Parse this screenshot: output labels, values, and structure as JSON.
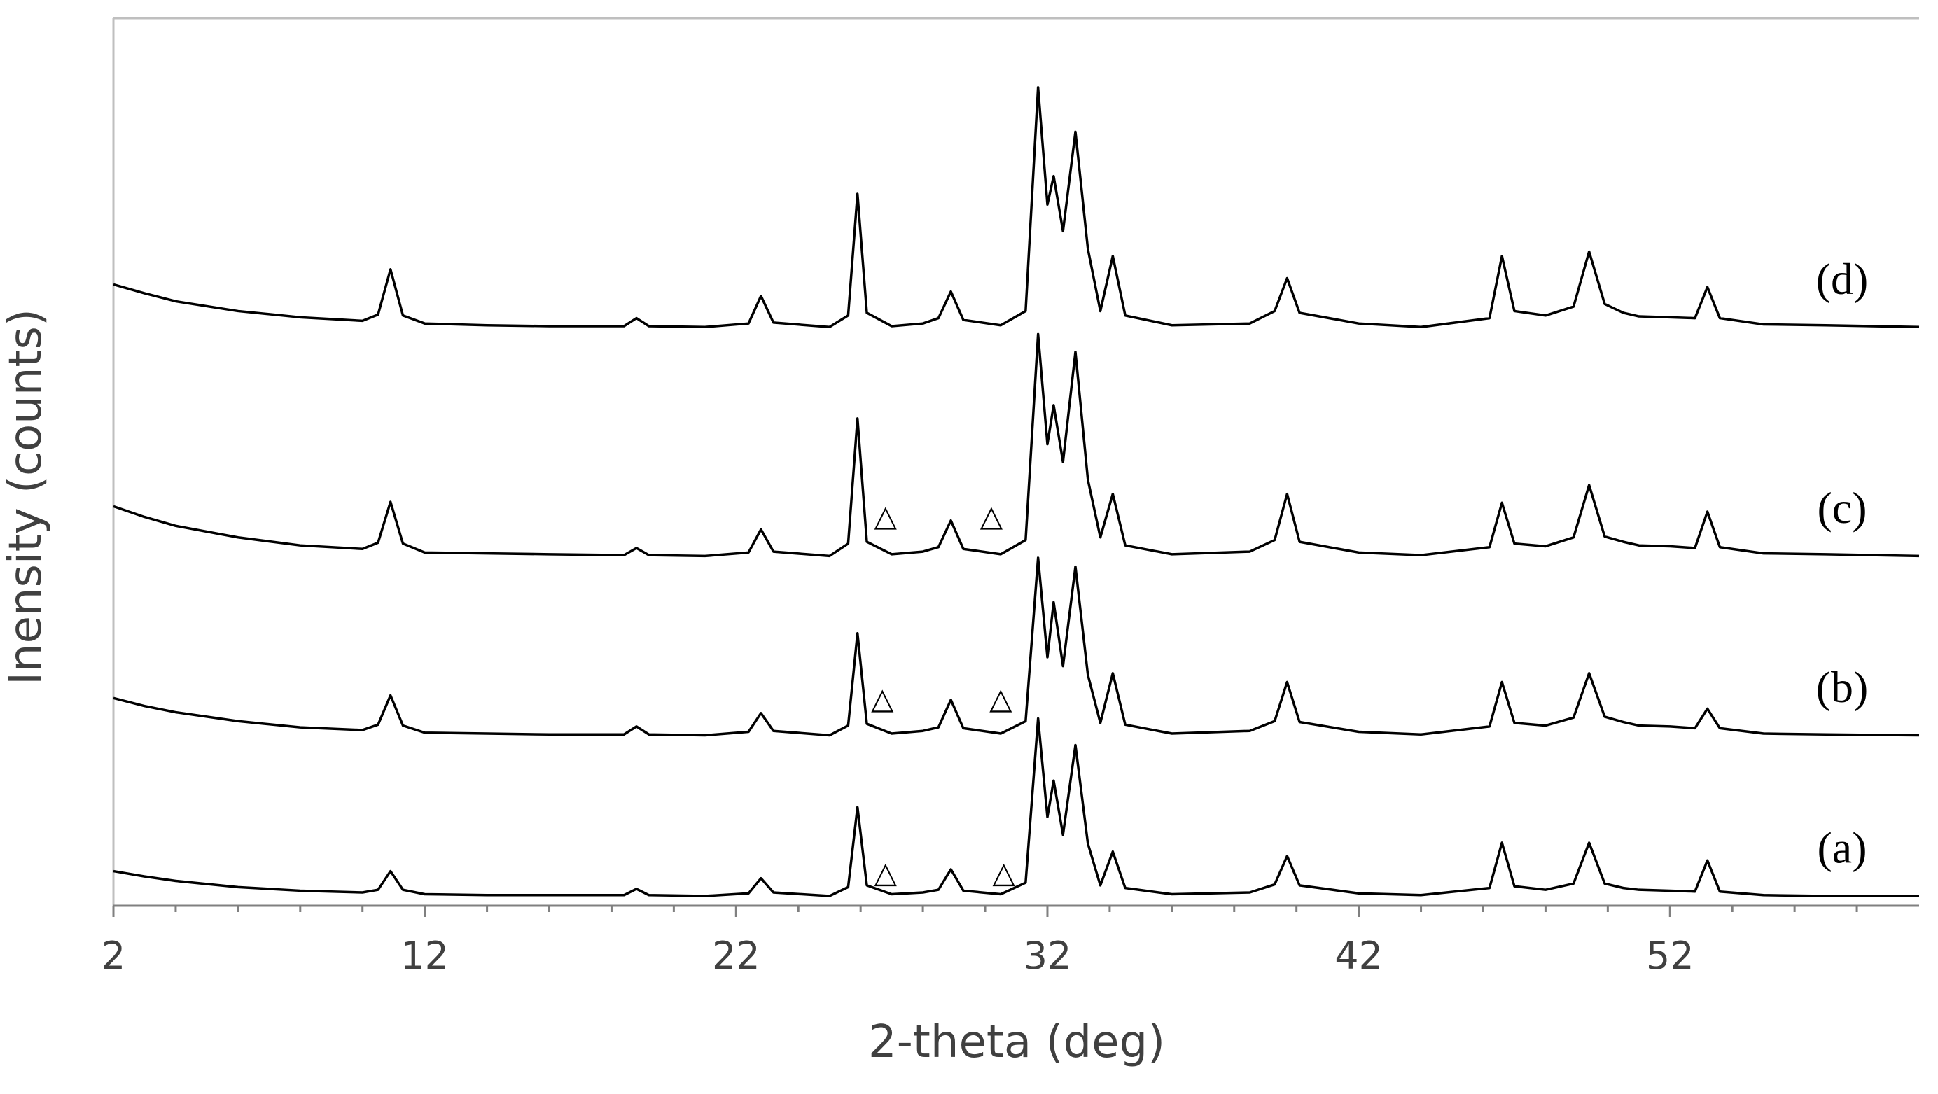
{
  "chart_data": {
    "type": "line",
    "xlabel": "2-theta (deg)",
    "ylabel": "Inensity (counts)",
    "x": [
      2,
      3,
      4,
      6,
      8,
      10,
      10.5,
      10.9,
      11.3,
      12,
      14,
      16,
      18.4,
      18.8,
      19.2,
      21,
      22.4,
      22.8,
      23.2,
      25,
      25.6,
      25.9,
      26.2,
      27,
      28,
      28.5,
      28.9,
      29.3,
      30.5,
      31.3,
      31.7,
      32.0,
      32.2,
      32.5,
      32.9,
      33.3,
      33.7,
      34.1,
      34.5,
      36,
      38.5,
      39.3,
      39.7,
      40.1,
      42,
      44,
      46.2,
      46.6,
      47,
      48,
      48.9,
      49.4,
      49.9,
      50.5,
      51,
      52,
      52.8,
      53.2,
      53.6,
      55,
      57,
      60
    ],
    "series": [
      {
        "name": "(a)",
        "color": "#000000",
        "values": [
          3.9,
          3.3,
          2.8,
          2.1,
          1.7,
          1.5,
          1.8,
          3.9,
          1.8,
          1.3,
          1.2,
          1.2,
          1.2,
          1.9,
          1.2,
          1.1,
          1.4,
          3.1,
          1.5,
          1.1,
          2.1,
          11.1,
          2.3,
          1.3,
          1.5,
          1.8,
          4.1,
          1.7,
          1.3,
          2.6,
          21.1,
          10,
          14.1,
          8,
          18.1,
          7,
          2.3,
          6.1,
          2,
          1.3,
          1.5,
          2.4,
          5.6,
          2.3,
          1.4,
          1.2,
          2,
          7.1,
          2.2,
          1.8,
          2.5,
          7.1,
          2.5,
          2,
          1.8,
          1.7,
          1.6,
          5.1,
          1.6,
          1.2,
          1.1,
          1.1
        ]
      },
      {
        "name": "(b)",
        "color": "#000000",
        "values": [
          23.4,
          22.5,
          21.8,
          20.8,
          20.1,
          19.8,
          20.4,
          23.7,
          20.3,
          19.5,
          19.4,
          19.3,
          19.3,
          20.2,
          19.3,
          19.2,
          19.6,
          21.7,
          19.7,
          19.2,
          20.3,
          30.7,
          20.5,
          19.4,
          19.7,
          20.1,
          23.2,
          20,
          19.4,
          20.8,
          39.2,
          28,
          34.2,
          27,
          38.2,
          26,
          20.6,
          26.2,
          20.4,
          19.4,
          19.7,
          20.8,
          25.2,
          20.7,
          19.6,
          19.3,
          20.2,
          25.2,
          20.6,
          20.3,
          21.2,
          26.2,
          21.3,
          20.7,
          20.3,
          20.2,
          20,
          22.2,
          20,
          19.4,
          19.3,
          19.2
        ]
      },
      {
        "name": "(c)",
        "color": "#000000",
        "values": [
          45,
          43.8,
          42.8,
          41.5,
          40.6,
          40.2,
          40.9,
          45.5,
          40.8,
          39.8,
          39.7,
          39.6,
          39.5,
          40.3,
          39.5,
          39.4,
          39.8,
          42.4,
          39.9,
          39.4,
          40.8,
          54.9,
          41,
          39.6,
          39.9,
          40.4,
          43.4,
          40.2,
          39.6,
          41.2,
          64.4,
          52,
          56.4,
          50,
          62.4,
          48,
          41.5,
          46.4,
          40.6,
          39.6,
          39.9,
          41.2,
          46.4,
          41,
          39.8,
          39.5,
          40.4,
          45.4,
          40.8,
          40.5,
          41.5,
          47.4,
          41.6,
          41,
          40.6,
          40.5,
          40.3,
          44.4,
          40.4,
          39.7,
          39.6,
          39.4
        ]
      },
      {
        "name": "(d)",
        "color": "#000000",
        "values": [
          70,
          69,
          68.1,
          67,
          66.3,
          65.9,
          66.6,
          71.7,
          66.5,
          65.6,
          65.4,
          65.3,
          65.3,
          66.2,
          65.3,
          65.2,
          65.6,
          68.7,
          65.7,
          65.2,
          66.5,
          80.2,
          66.8,
          65.3,
          65.6,
          66.2,
          69.2,
          66,
          65.4,
          67,
          92.2,
          79,
          82.2,
          76,
          87.2,
          74,
          67,
          73.2,
          66.5,
          65.4,
          65.6,
          67,
          70.7,
          66.8,
          65.6,
          65.2,
          66.2,
          73.2,
          67,
          66.5,
          67.5,
          73.7,
          67.8,
          66.8,
          66.4,
          66.3,
          66.2,
          69.7,
          66.2,
          65.5,
          65.4,
          65.2
        ]
      }
    ],
    "annotations": [
      {
        "text": "△",
        "x": 26.8,
        "y": 3.5
      },
      {
        "text": "△",
        "x": 30.6,
        "y": 3.5
      },
      {
        "text": "△",
        "x": 26.7,
        "y": 23.1
      },
      {
        "text": "△",
        "x": 30.5,
        "y": 23.1
      },
      {
        "text": "△",
        "x": 26.8,
        "y": 43.7
      },
      {
        "text": "△",
        "x": 30.2,
        "y": 43.7
      }
    ],
    "xlim": [
      2,
      60
    ],
    "xticks": [
      2,
      12,
      22,
      32,
      42,
      52
    ],
    "xminorticks": [
      4,
      6,
      8,
      10,
      14,
      16,
      18,
      20,
      24,
      26,
      28,
      30,
      34,
      36,
      38,
      40,
      44,
      46,
      48,
      50,
      54,
      56,
      58
    ],
    "ylim": [
      0,
      100
    ]
  }
}
